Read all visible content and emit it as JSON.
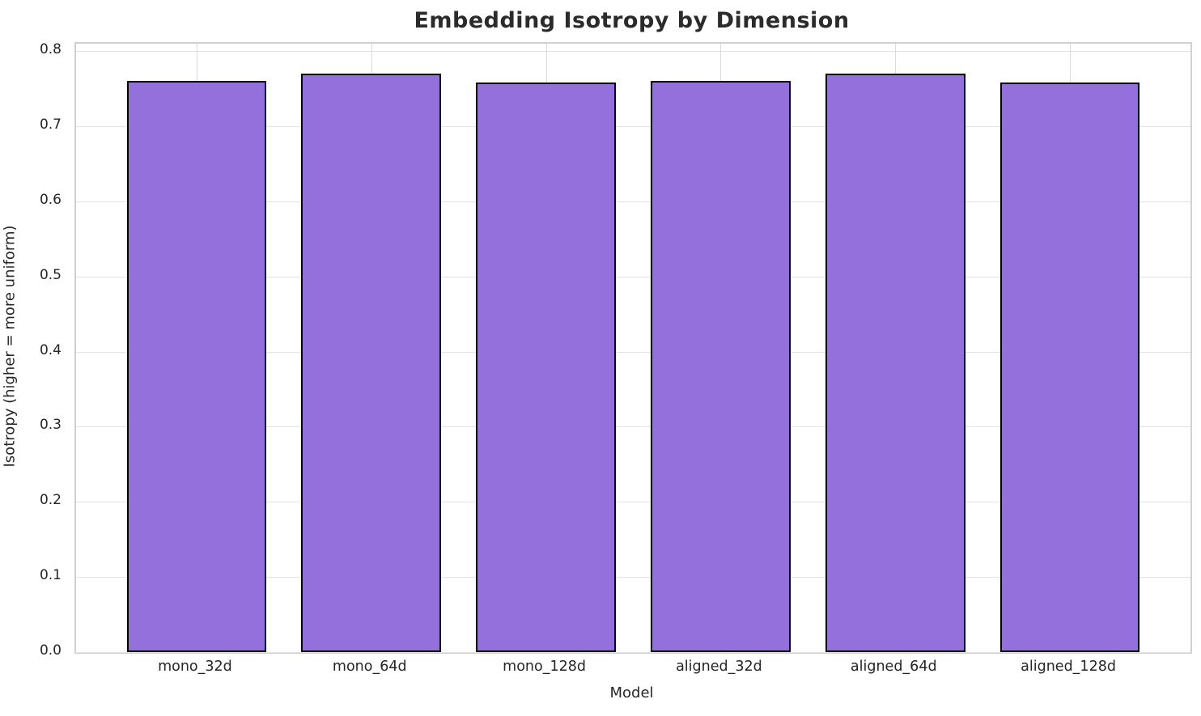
{
  "chart_data": {
    "type": "bar",
    "title": "Embedding Isotropy by Dimension",
    "xlabel": "Model",
    "ylabel": "Isotropy (higher = more uniform)",
    "categories": [
      "mono_32d",
      "mono_64d",
      "mono_128d",
      "aligned_32d",
      "aligned_64d",
      "aligned_128d"
    ],
    "values": [
      0.76,
      0.77,
      0.758,
      0.76,
      0.77,
      0.758
    ],
    "ylim": [
      0,
      0.81
    ],
    "yticks": [
      0.0,
      0.1,
      0.2,
      0.3,
      0.4,
      0.5,
      0.6,
      0.7,
      0.8
    ],
    "grid": true,
    "legend_position": "none",
    "bar_color": "#9370DB",
    "bar_edge_color": "#000000",
    "grid_color": "#e2e2e2",
    "spine_color": "#d0d0d0",
    "text_color": "#262626",
    "title_color": "#2b2b2b"
  }
}
